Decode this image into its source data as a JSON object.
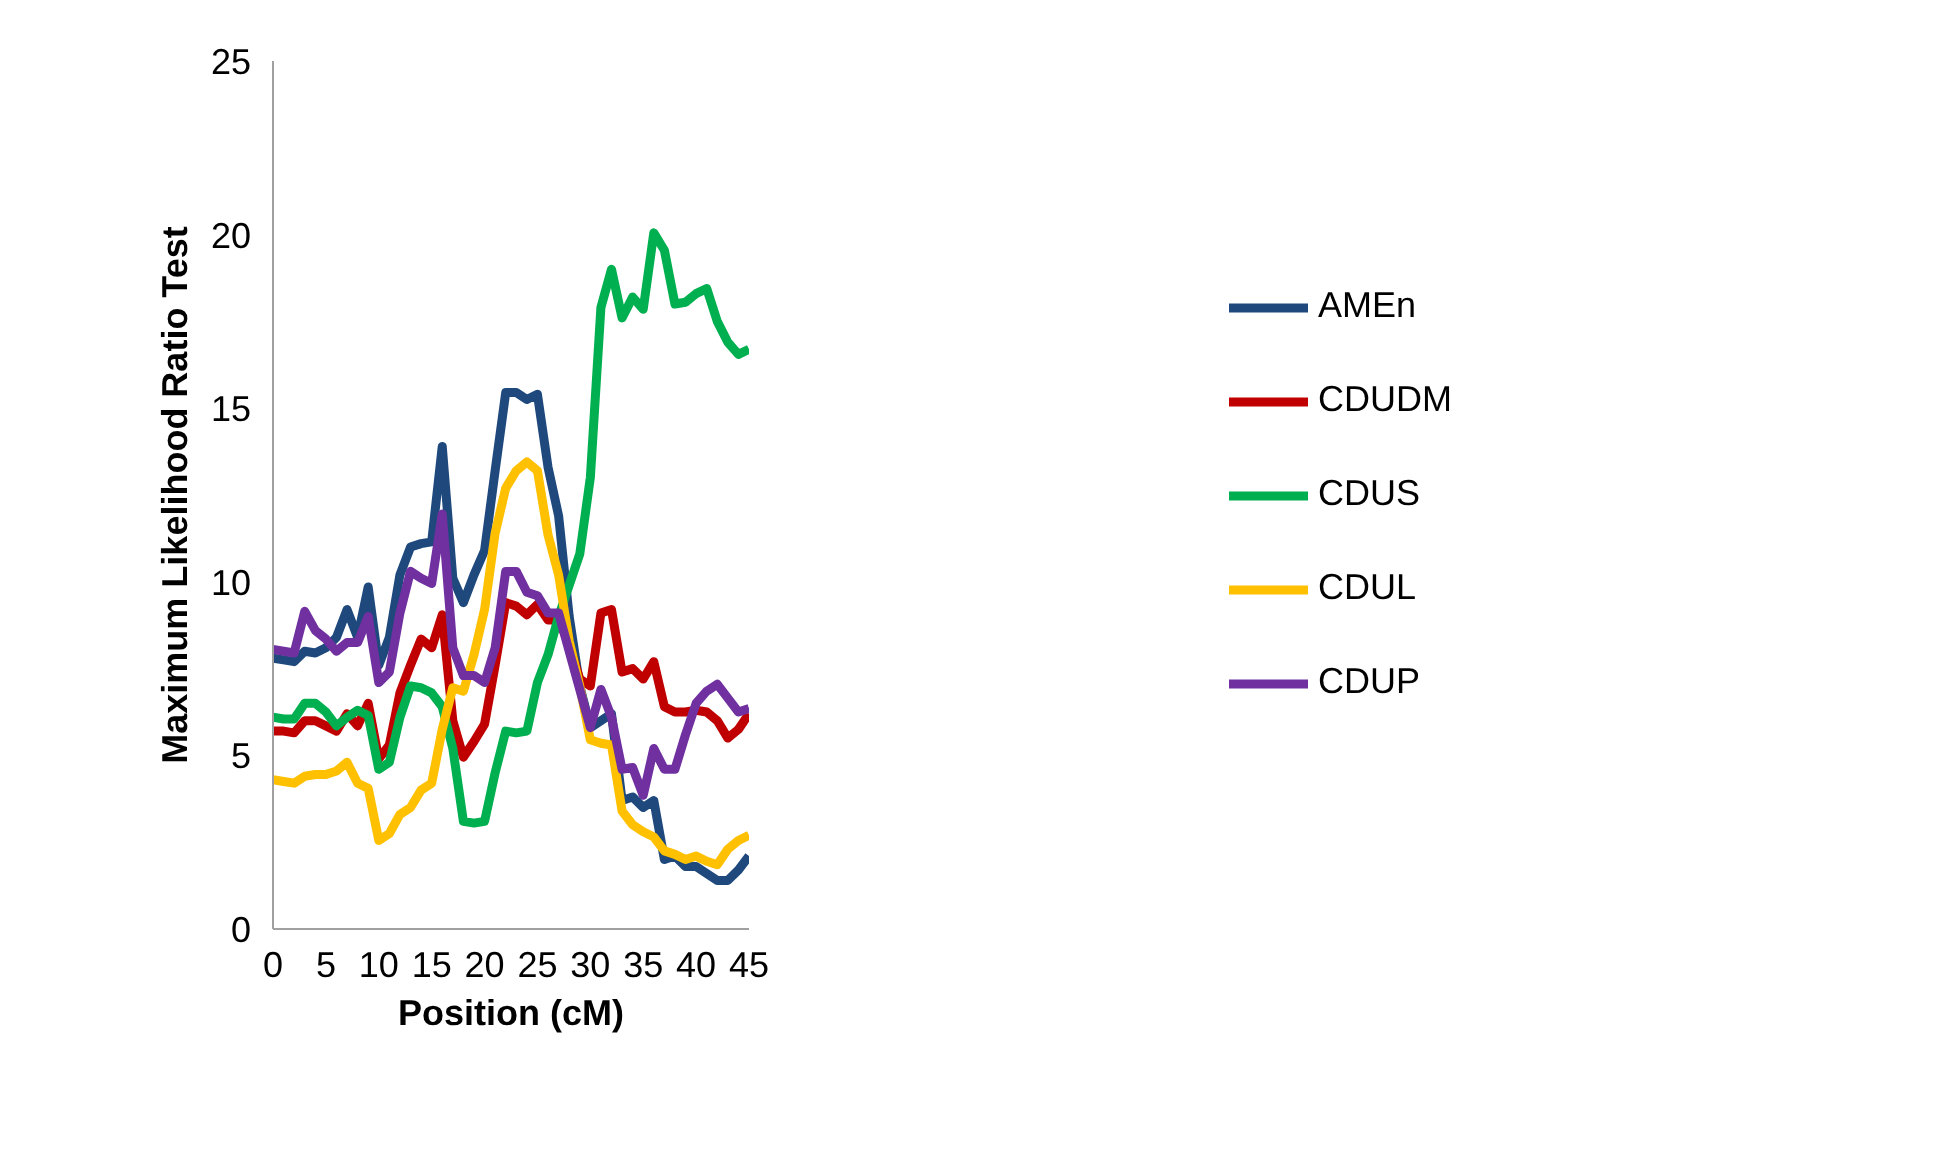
{
  "chart_data": {
    "type": "line",
    "xlabel": "Position (cM)",
    "ylabel": "Maximum Likelihood Ratio Test",
    "x": [
      0,
      1,
      2,
      3,
      4,
      5,
      6,
      7,
      8,
      9,
      10,
      11,
      12,
      13,
      14,
      15,
      16,
      17,
      18,
      19,
      20,
      21,
      22,
      23,
      24,
      25,
      26,
      27,
      28,
      29,
      30,
      31,
      32,
      33,
      34,
      35,
      36,
      37,
      38,
      39,
      40,
      41,
      42,
      43,
      44,
      45
    ],
    "xlim": [
      0,
      45
    ],
    "xticks": [
      0,
      5,
      10,
      15,
      20,
      25,
      30,
      35,
      40,
      45
    ],
    "ylim": [
      0,
      25
    ],
    "yticks": [
      0,
      5,
      10,
      15,
      20,
      25
    ],
    "grid": false,
    "legend": "right",
    "marker": "none",
    "line_style": "solid",
    "series": [
      {
        "name": "AMEn",
        "color": "#1f497d",
        "values": [
          7.8,
          7.75,
          7.7,
          8.0,
          7.95,
          8.1,
          8.4,
          9.2,
          8.4,
          9.85,
          7.6,
          8.4,
          10.2,
          11.0,
          11.1,
          11.15,
          13.9,
          10.1,
          9.4,
          10.2,
          10.9,
          13.2,
          15.45,
          15.45,
          15.25,
          15.4,
          13.3,
          11.9,
          9.0,
          7.0,
          5.8,
          6.0,
          6.2,
          3.7,
          3.8,
          3.5,
          3.7,
          2.0,
          2.1,
          1.8,
          1.8,
          1.6,
          1.4,
          1.4,
          1.7,
          2.1
        ]
      },
      {
        "name": "CDUDM",
        "color": "#c00000",
        "values": [
          5.7,
          5.7,
          5.65,
          6.0,
          6.0,
          5.85,
          5.7,
          6.2,
          5.85,
          6.5,
          4.9,
          5.3,
          6.8,
          7.6,
          8.35,
          8.1,
          9.05,
          6.0,
          4.95,
          5.4,
          5.9,
          7.6,
          9.4,
          9.3,
          9.05,
          9.35,
          8.9,
          8.9,
          8.2,
          7.2,
          7.0,
          9.1,
          9.2,
          7.4,
          7.5,
          7.2,
          7.7,
          6.4,
          6.25,
          6.25,
          6.3,
          6.25,
          6.0,
          5.5,
          5.75,
          6.2
        ]
      },
      {
        "name": "CDUS",
        "color": "#00b050",
        "values": [
          6.1,
          6.05,
          6.05,
          6.5,
          6.5,
          6.25,
          5.85,
          6.1,
          6.3,
          6.15,
          4.6,
          4.8,
          6.1,
          7.0,
          6.95,
          6.8,
          6.4,
          5.2,
          3.1,
          3.05,
          3.1,
          4.5,
          5.7,
          5.65,
          5.7,
          7.1,
          7.9,
          9.0,
          9.9,
          10.8,
          13.0,
          17.9,
          19.0,
          17.6,
          18.2,
          17.85,
          20.05,
          19.55,
          18.0,
          18.05,
          18.3,
          18.45,
          17.5,
          16.9,
          16.55,
          16.7
        ]
      },
      {
        "name": "CDUL",
        "color": "#ffc000",
        "values": [
          4.3,
          4.25,
          4.2,
          4.4,
          4.45,
          4.45,
          4.55,
          4.8,
          4.2,
          4.05,
          2.55,
          2.75,
          3.3,
          3.5,
          4.0,
          4.2,
          5.75,
          6.95,
          6.85,
          7.9,
          9.2,
          11.4,
          12.7,
          13.2,
          13.45,
          13.2,
          11.35,
          10.2,
          8.3,
          7.0,
          5.45,
          5.35,
          5.3,
          3.4,
          3.0,
          2.8,
          2.65,
          2.25,
          2.15,
          2.0,
          2.1,
          1.95,
          1.85,
          2.3,
          2.55,
          2.7
        ]
      },
      {
        "name": "CDUP",
        "color": "#7030a0",
        "values": [
          8.05,
          8.0,
          7.95,
          9.15,
          8.6,
          8.35,
          8.0,
          8.25,
          8.25,
          9.0,
          7.1,
          7.4,
          9.1,
          10.3,
          10.1,
          9.95,
          11.95,
          8.1,
          7.3,
          7.3,
          7.1,
          8.1,
          10.3,
          10.3,
          9.7,
          9.6,
          9.1,
          9.1,
          8.0,
          6.9,
          5.8,
          6.9,
          6.1,
          4.6,
          4.65,
          3.85,
          5.2,
          4.6,
          4.6,
          5.6,
          6.5,
          6.85,
          7.05,
          6.65,
          6.25,
          6.35
        ]
      }
    ]
  }
}
